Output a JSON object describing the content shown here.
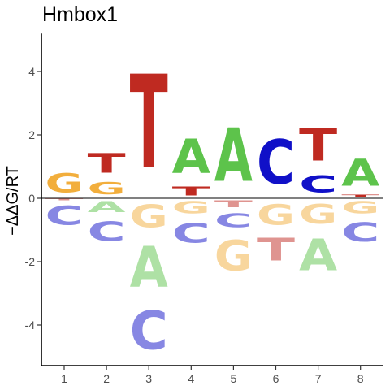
{
  "chart_data": {
    "type": "sequence-logo",
    "title": "Hmbox1",
    "ylabel": "−ΔΔG/RT",
    "xlabel": "",
    "ylim": [
      -5.3,
      5.2
    ],
    "yticks": [
      -4,
      -2,
      0,
      2,
      4
    ],
    "positions": [
      1,
      2,
      3,
      4,
      5,
      6,
      7,
      8
    ],
    "colors": {
      "A": "#5DC34B",
      "C": "#1010C8",
      "G": "#F2AE3C",
      "T": "#BF2A21"
    },
    "columns": [
      {
        "position": 1,
        "positive": [
          {
            "letter": "G",
            "value": 0.95
          }
        ],
        "negative": [
          {
            "letter": "T",
            "value": 0.08
          },
          {
            "letter": "C",
            "value": 0.95
          }
        ]
      },
      {
        "position": 2,
        "positive": [
          {
            "letter": "G",
            "value": 0.6
          },
          {
            "letter": "T",
            "value": 1.0
          }
        ],
        "negative": [
          {
            "letter": "A",
            "value": 0.55
          },
          {
            "letter": "C",
            "value": 1.0
          }
        ]
      },
      {
        "position": 3,
        "positive": [
          {
            "letter": "T",
            "value": 4.75
          }
        ],
        "negative": [
          {
            "letter": "G",
            "value": 1.15
          },
          {
            "letter": "A",
            "value": 2.05
          },
          {
            "letter": "C",
            "value": 1.95
          }
        ]
      },
      {
        "position": 4,
        "positive": [
          {
            "letter": "T",
            "value": 0.45
          },
          {
            "letter": "A",
            "value": 1.75
          }
        ],
        "negative": [
          {
            "letter": "G",
            "value": 0.6
          },
          {
            "letter": "C",
            "value": 1.0
          }
        ]
      },
      {
        "position": 5,
        "positive": [
          {
            "letter": "A",
            "value": 2.7
          }
        ],
        "negative": [
          {
            "letter": "T",
            "value": 0.35
          },
          {
            "letter": "C",
            "value": 0.7
          },
          {
            "letter": "G",
            "value": 1.55
          }
        ]
      },
      {
        "position": 6,
        "positive": [
          {
            "letter": "C",
            "value": 2.25
          }
        ],
        "negative": [
          {
            "letter": "G",
            "value": 1.05
          },
          {
            "letter": "T",
            "value": 1.15
          }
        ]
      },
      {
        "position": 7,
        "positive": [
          {
            "letter": "C",
            "value": 0.85
          },
          {
            "letter": "T",
            "value": 1.65
          }
        ],
        "negative": [
          {
            "letter": "G",
            "value": 1.0
          },
          {
            "letter": "A",
            "value": 1.6
          }
        ]
      },
      {
        "position": 8,
        "positive": [
          {
            "letter": "T",
            "value": 0.12
          },
          {
            "letter": "A",
            "value": 1.35
          }
        ],
        "negative": [
          {
            "letter": "G",
            "value": 0.6
          },
          {
            "letter": "C",
            "value": 0.95
          }
        ]
      }
    ]
  }
}
